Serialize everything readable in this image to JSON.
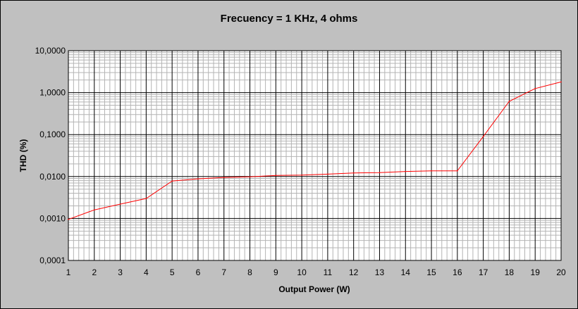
{
  "chart_data": {
    "type": "line",
    "title": "Frecuency = 1 KHz, 4 ohms",
    "xlabel": "Output Power (W)",
    "ylabel": "THD (%)",
    "xlim": [
      1,
      20
    ],
    "ylim": [
      0.0001,
      10
    ],
    "yscale": "log",
    "x_ticks": [
      "1",
      "2",
      "3",
      "4",
      "5",
      "6",
      "7",
      "8",
      "9",
      "10",
      "11",
      "12",
      "13",
      "14",
      "15",
      "16",
      "17",
      "18",
      "19",
      "20"
    ],
    "y_ticks": [
      "10,0000",
      "1,0000",
      "0,1000",
      "0,0100",
      "0,0010",
      "0,0001"
    ],
    "grid": true,
    "legend": "none",
    "series": [
      {
        "color": "#ff0000",
        "x": [
          1,
          2,
          3,
          4,
          5,
          6,
          7,
          8,
          9,
          10,
          11,
          12,
          13,
          14,
          15,
          16,
          17,
          18,
          19,
          20
        ],
        "y": [
          0.00095,
          0.0016,
          0.0022,
          0.003,
          0.0078,
          0.0088,
          0.0095,
          0.0098,
          0.0106,
          0.0108,
          0.0114,
          0.0122,
          0.0124,
          0.0132,
          0.0136,
          0.0136,
          0.09,
          0.62,
          1.25,
          1.8
        ]
      }
    ]
  }
}
